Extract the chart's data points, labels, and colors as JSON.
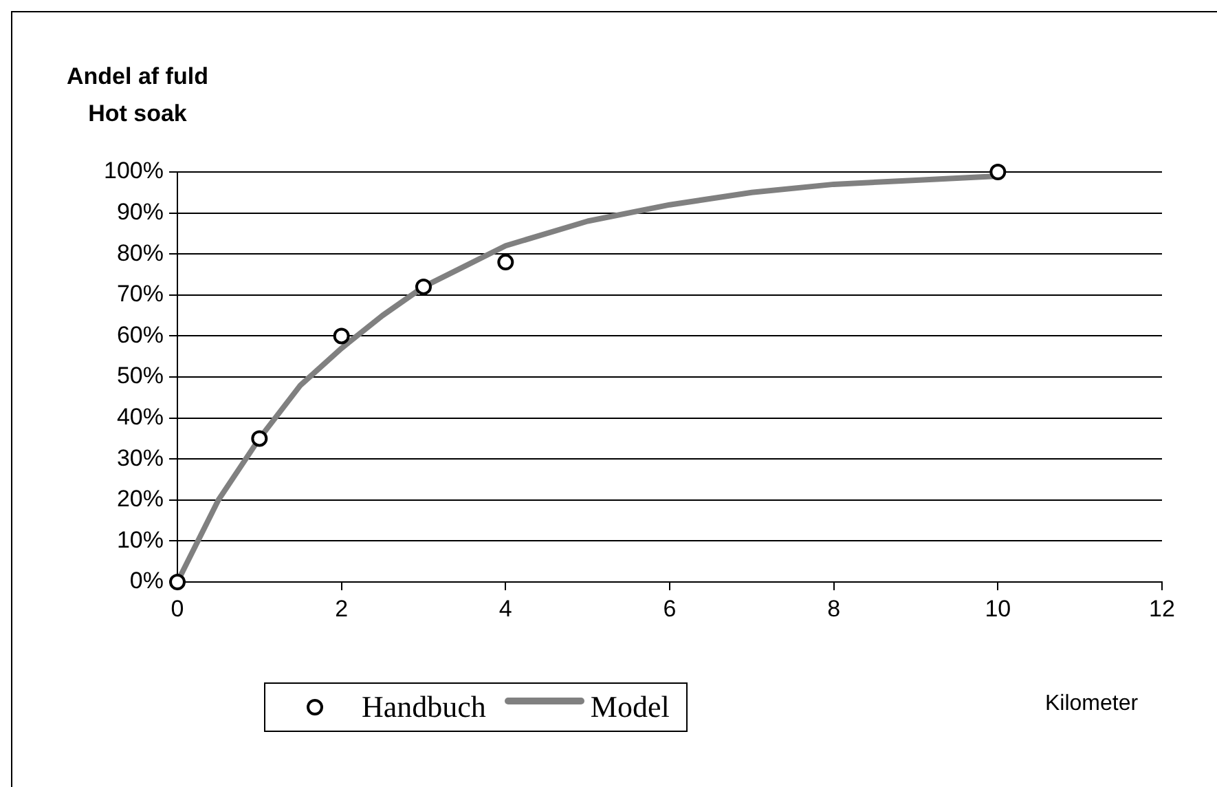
{
  "chart_data": {
    "type": "scatter",
    "ylabel": "Andel af fuld\nHot soak",
    "xlabel": "Kilometer",
    "xlim": [
      0,
      12
    ],
    "xticks": [
      0,
      2,
      4,
      6,
      8,
      10,
      12
    ],
    "ylim": [
      0,
      100
    ],
    "yticks": [
      {
        "value": 0,
        "label": "0%"
      },
      {
        "value": 10,
        "label": "10%"
      },
      {
        "value": 20,
        "label": "20%"
      },
      {
        "value": 30,
        "label": "30%"
      },
      {
        "value": 40,
        "label": "40%"
      },
      {
        "value": 50,
        "label": "50%"
      },
      {
        "value": 60,
        "label": "60%"
      },
      {
        "value": 70,
        "label": "70%"
      },
      {
        "value": 80,
        "label": "80%"
      },
      {
        "value": 90,
        "label": "90%"
      },
      {
        "value": 100,
        "label": "100%"
      }
    ],
    "grid": "y",
    "legend": "bottom",
    "series": [
      {
        "name": "Handbuch",
        "marker": "circle",
        "color": "#000000",
        "x": [
          0,
          1,
          2,
          3,
          4,
          10
        ],
        "values": [
          0,
          35,
          60,
          72,
          78,
          100
        ]
      },
      {
        "name": "Model",
        "type": "line",
        "marker": "none",
        "line_style": "solid",
        "color": "#808080",
        "x": [
          0,
          0.5,
          1,
          1.5,
          2,
          2.5,
          3,
          3.5,
          4,
          5,
          6,
          7,
          8,
          9,
          10
        ],
        "values": [
          0,
          20,
          35,
          48,
          57,
          65,
          72,
          77,
          82,
          88,
          92,
          95,
          97,
          98,
          99
        ]
      }
    ]
  }
}
